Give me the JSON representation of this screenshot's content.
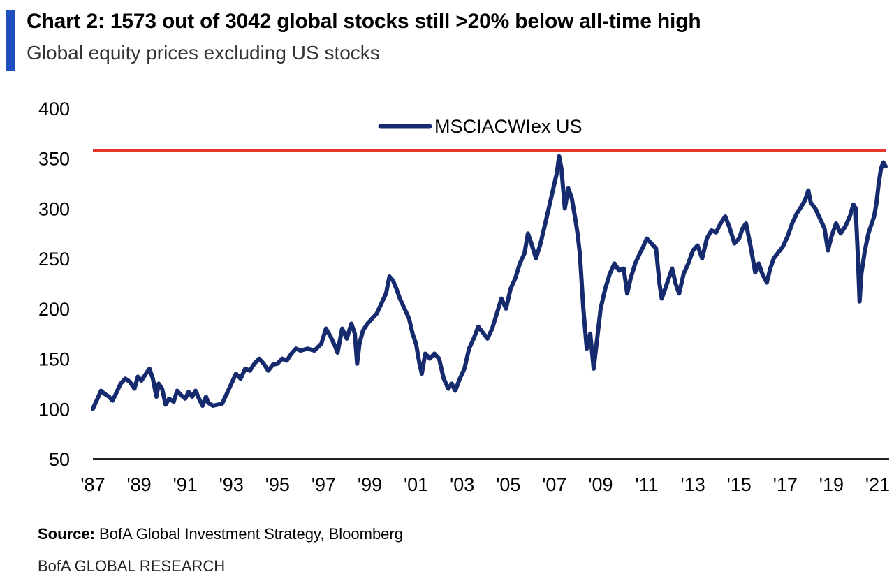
{
  "header": {
    "title": "Chart 2: 1573 out of 3042 global stocks still >20% below all-time high",
    "subtitle": "Global equity prices excluding US stocks",
    "accent_color": "#1f4fbf"
  },
  "footer": {
    "source_label": "Source:",
    "source_text": "BofA Global Investment Strategy, Bloomberg",
    "brand": "BofA GLOBAL RESEARCH"
  },
  "chart_data": {
    "type": "line",
    "title": "Chart 2: 1573 out of 3042 global stocks still >20% below all-time high",
    "subtitle": "Global equity prices excluding US stocks",
    "xlabel": "",
    "ylabel": "",
    "xlim": [
      1987,
      2021.5
    ],
    "ylim": [
      50,
      400
    ],
    "yticks": [
      50,
      100,
      150,
      200,
      250,
      300,
      350,
      400
    ],
    "xticks": [
      {
        "value": 1987,
        "label": "'87"
      },
      {
        "value": 1989,
        "label": "'89"
      },
      {
        "value": 1991,
        "label": "'91"
      },
      {
        "value": 1993,
        "label": "'93"
      },
      {
        "value": 1995,
        "label": "'95"
      },
      {
        "value": 1997,
        "label": "'97"
      },
      {
        "value": 1999,
        "label": "'99"
      },
      {
        "value": 2001,
        "label": "'01"
      },
      {
        "value": 2003,
        "label": "'03"
      },
      {
        "value": 2005,
        "label": "'05"
      },
      {
        "value": 2007,
        "label": "'07"
      },
      {
        "value": 2009,
        "label": "'09"
      },
      {
        "value": 2011,
        "label": "'11"
      },
      {
        "value": 2013,
        "label": "'13"
      },
      {
        "value": 2015,
        "label": "'15"
      },
      {
        "value": 2017,
        "label": "'17"
      },
      {
        "value": 2019,
        "label": "'19"
      },
      {
        "value": 2021,
        "label": "'21"
      }
    ],
    "grid": false,
    "legend": {
      "position": "top-center"
    },
    "reference_line": {
      "y": 358,
      "color": "#e8352b"
    },
    "series": [
      {
        "name": "MSCIACWIex US",
        "color": "#162a6e",
        "points": [
          [
            1987.0,
            100
          ],
          [
            1987.2,
            110
          ],
          [
            1987.35,
            118
          ],
          [
            1987.5,
            115
          ],
          [
            1987.7,
            112
          ],
          [
            1987.85,
            108
          ],
          [
            1988.0,
            115
          ],
          [
            1988.2,
            125
          ],
          [
            1988.4,
            130
          ],
          [
            1988.6,
            127
          ],
          [
            1988.8,
            120
          ],
          [
            1988.95,
            132
          ],
          [
            1989.1,
            128
          ],
          [
            1989.3,
            135
          ],
          [
            1989.45,
            140
          ],
          [
            1989.6,
            130
          ],
          [
            1989.75,
            112
          ],
          [
            1989.85,
            125
          ],
          [
            1990.0,
            120
          ],
          [
            1990.15,
            104
          ],
          [
            1990.3,
            110
          ],
          [
            1990.5,
            107
          ],
          [
            1990.65,
            118
          ],
          [
            1990.8,
            114
          ],
          [
            1991.0,
            110
          ],
          [
            1991.15,
            117
          ],
          [
            1991.3,
            112
          ],
          [
            1991.45,
            118
          ],
          [
            1991.6,
            110
          ],
          [
            1991.75,
            103
          ],
          [
            1991.9,
            112
          ],
          [
            1992.0,
            106
          ],
          [
            1992.2,
            103
          ],
          [
            1992.4,
            104
          ],
          [
            1992.6,
            105
          ],
          [
            1992.8,
            115
          ],
          [
            1993.0,
            125
          ],
          [
            1993.2,
            135
          ],
          [
            1993.4,
            130
          ],
          [
            1993.6,
            140
          ],
          [
            1993.8,
            138
          ],
          [
            1994.0,
            145
          ],
          [
            1994.2,
            150
          ],
          [
            1994.4,
            145
          ],
          [
            1994.6,
            138
          ],
          [
            1994.8,
            144
          ],
          [
            1995.0,
            145
          ],
          [
            1995.2,
            150
          ],
          [
            1995.4,
            148
          ],
          [
            1995.6,
            155
          ],
          [
            1995.8,
            160
          ],
          [
            1996.0,
            158
          ],
          [
            1996.3,
            160
          ],
          [
            1996.6,
            158
          ],
          [
            1996.9,
            165
          ],
          [
            1997.1,
            180
          ],
          [
            1997.3,
            172
          ],
          [
            1997.5,
            162
          ],
          [
            1997.6,
            156
          ],
          [
            1997.8,
            180
          ],
          [
            1998.0,
            170
          ],
          [
            1998.2,
            185
          ],
          [
            1998.35,
            175
          ],
          [
            1998.45,
            145
          ],
          [
            1998.55,
            165
          ],
          [
            1998.7,
            178
          ],
          [
            1998.9,
            185
          ],
          [
            1999.1,
            190
          ],
          [
            1999.3,
            195
          ],
          [
            1999.5,
            205
          ],
          [
            1999.7,
            215
          ],
          [
            1999.85,
            232
          ],
          [
            2000.0,
            228
          ],
          [
            2000.15,
            220
          ],
          [
            2000.3,
            210
          ],
          [
            2000.5,
            200
          ],
          [
            2000.7,
            190
          ],
          [
            2000.85,
            175
          ],
          [
            2001.0,
            165
          ],
          [
            2001.15,
            145
          ],
          [
            2001.25,
            135
          ],
          [
            2001.4,
            155
          ],
          [
            2001.6,
            150
          ],
          [
            2001.8,
            155
          ],
          [
            2002.0,
            150
          ],
          [
            2002.2,
            130
          ],
          [
            2002.4,
            120
          ],
          [
            2002.55,
            125
          ],
          [
            2002.7,
            118
          ],
          [
            2002.9,
            130
          ],
          [
            2003.1,
            140
          ],
          [
            2003.3,
            160
          ],
          [
            2003.5,
            170
          ],
          [
            2003.7,
            182
          ],
          [
            2003.9,
            176
          ],
          [
            2004.1,
            170
          ],
          [
            2004.3,
            180
          ],
          [
            2004.5,
            195
          ],
          [
            2004.7,
            210
          ],
          [
            2004.9,
            200
          ],
          [
            2005.1,
            220
          ],
          [
            2005.3,
            230
          ],
          [
            2005.5,
            245
          ],
          [
            2005.7,
            255
          ],
          [
            2005.85,
            275
          ],
          [
            2006.0,
            265
          ],
          [
            2006.2,
            250
          ],
          [
            2006.4,
            265
          ],
          [
            2006.6,
            285
          ],
          [
            2006.8,
            305
          ],
          [
            2006.95,
            320
          ],
          [
            2007.1,
            335
          ],
          [
            2007.2,
            352
          ],
          [
            2007.3,
            340
          ],
          [
            2007.45,
            300
          ],
          [
            2007.6,
            320
          ],
          [
            2007.75,
            310
          ],
          [
            2007.9,
            290
          ],
          [
            2008.0,
            275
          ],
          [
            2008.1,
            255
          ],
          [
            2008.25,
            200
          ],
          [
            2008.4,
            160
          ],
          [
            2008.55,
            175
          ],
          [
            2008.7,
            140
          ],
          [
            2008.85,
            170
          ],
          [
            2009.0,
            200
          ],
          [
            2009.2,
            220
          ],
          [
            2009.4,
            235
          ],
          [
            2009.6,
            245
          ],
          [
            2009.8,
            238
          ],
          [
            2010.0,
            240
          ],
          [
            2010.15,
            215
          ],
          [
            2010.3,
            230
          ],
          [
            2010.5,
            245
          ],
          [
            2010.7,
            255
          ],
          [
            2010.85,
            262
          ],
          [
            2011.0,
            270
          ],
          [
            2011.2,
            265
          ],
          [
            2011.4,
            260
          ],
          [
            2011.55,
            225
          ],
          [
            2011.65,
            210
          ],
          [
            2011.8,
            220
          ],
          [
            2011.95,
            230
          ],
          [
            2012.1,
            240
          ],
          [
            2012.25,
            225
          ],
          [
            2012.4,
            215
          ],
          [
            2012.6,
            235
          ],
          [
            2012.8,
            245
          ],
          [
            2013.0,
            258
          ],
          [
            2013.2,
            263
          ],
          [
            2013.4,
            250
          ],
          [
            2013.6,
            270
          ],
          [
            2013.8,
            278
          ],
          [
            2014.0,
            276
          ],
          [
            2014.2,
            285
          ],
          [
            2014.4,
            292
          ],
          [
            2014.6,
            280
          ],
          [
            2014.8,
            265
          ],
          [
            2015.0,
            270
          ],
          [
            2015.15,
            280
          ],
          [
            2015.3,
            285
          ],
          [
            2015.5,
            262
          ],
          [
            2015.7,
            236
          ],
          [
            2015.85,
            245
          ],
          [
            2016.0,
            235
          ],
          [
            2016.2,
            226
          ],
          [
            2016.35,
            240
          ],
          [
            2016.5,
            250
          ],
          [
            2016.7,
            256
          ],
          [
            2016.9,
            262
          ],
          [
            2017.1,
            272
          ],
          [
            2017.3,
            285
          ],
          [
            2017.5,
            295
          ],
          [
            2017.7,
            302
          ],
          [
            2017.85,
            308
          ],
          [
            2018.0,
            318
          ],
          [
            2018.1,
            306
          ],
          [
            2018.3,
            300
          ],
          [
            2018.5,
            290
          ],
          [
            2018.7,
            280
          ],
          [
            2018.85,
            258
          ],
          [
            2019.0,
            272
          ],
          [
            2019.2,
            285
          ],
          [
            2019.4,
            275
          ],
          [
            2019.6,
            282
          ],
          [
            2019.8,
            292
          ],
          [
            2019.95,
            304
          ],
          [
            2020.05,
            300
          ],
          [
            2020.15,
            250
          ],
          [
            2020.22,
            207
          ],
          [
            2020.3,
            235
          ],
          [
            2020.45,
            258
          ],
          [
            2020.6,
            275
          ],
          [
            2020.75,
            285
          ],
          [
            2020.85,
            292
          ],
          [
            2020.95,
            305
          ],
          [
            2021.05,
            325
          ],
          [
            2021.15,
            340
          ],
          [
            2021.25,
            346
          ],
          [
            2021.35,
            342
          ]
        ]
      }
    ]
  }
}
